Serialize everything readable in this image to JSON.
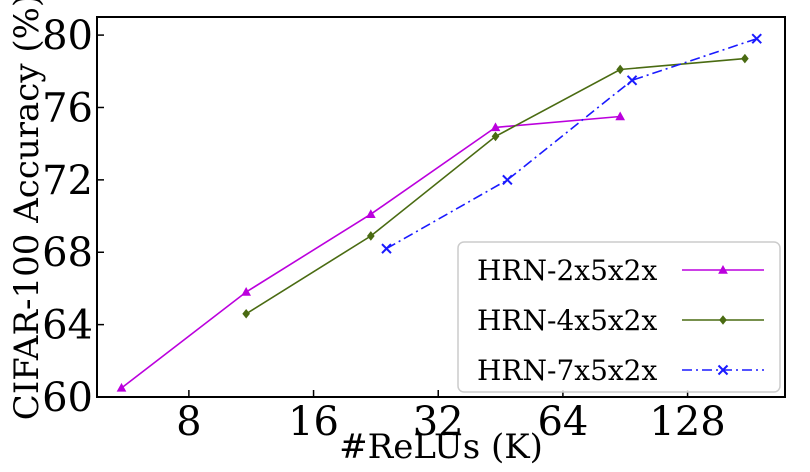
{
  "chart_data": {
    "type": "line",
    "title": "",
    "xlabel": "#ReLUs (K)",
    "ylabel": "CIFAR-100 Accuracy (%)",
    "x_scale": "log2",
    "xlim": [
      4.8,
      220
    ],
    "ylim": [
      60,
      81
    ],
    "x_ticks": [
      8,
      16,
      32,
      64,
      128
    ],
    "x_tick_labels": [
      "8",
      "16",
      "32",
      "64",
      "128"
    ],
    "y_ticks": [
      60,
      64,
      68,
      72,
      76,
      80
    ],
    "y_tick_labels": [
      "60",
      "64",
      "68",
      "72",
      "76",
      "80"
    ],
    "grid": false,
    "legend_position": "bottom-right",
    "series": [
      {
        "name": "HRN-2x5x2x",
        "color": "#bb00dd",
        "marker": "triangle",
        "line_style": "solid",
        "x": [
          5.5,
          11.0,
          22.0,
          44.0,
          88.0
        ],
        "y": [
          60.5,
          65.8,
          70.1,
          74.9,
          75.5
        ]
      },
      {
        "name": "HRN-4x5x2x",
        "color": "#4a6b12",
        "marker": "diamond",
        "line_style": "solid",
        "x": [
          11.0,
          22.0,
          44.0,
          88.0,
          176.0
        ],
        "y": [
          64.6,
          68.9,
          74.4,
          78.1,
          78.7
        ]
      },
      {
        "name": "HRN-7x5x2x",
        "color": "#1a1aff",
        "marker": "x",
        "line_style": "dashdot",
        "x": [
          24.0,
          47.0,
          94.0,
          188.0
        ],
        "y": [
          68.2,
          72.0,
          77.5,
          79.8
        ]
      }
    ]
  }
}
